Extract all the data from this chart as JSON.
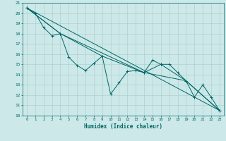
{
  "title": "",
  "xlabel": "Humidex (Indice chaleur)",
  "bg_color": "#cce8e8",
  "grid_color": "#b0d0d0",
  "line_color": "#006666",
  "xlim": [
    -0.5,
    23.5
  ],
  "ylim": [
    10,
    21
  ],
  "line1_x": [
    0,
    1,
    2,
    3,
    4,
    5,
    6,
    7,
    8,
    9,
    10,
    11,
    12,
    13,
    14,
    15,
    16,
    17,
    18,
    19,
    20,
    21,
    22,
    23
  ],
  "line1_y": [
    20.5,
    20.0,
    18.6,
    17.8,
    18.0,
    15.7,
    14.9,
    14.4,
    15.1,
    15.8,
    12.1,
    13.2,
    14.3,
    14.4,
    14.2,
    15.4,
    15.0,
    15.0,
    14.2,
    13.4,
    11.8,
    13.0,
    11.8,
    10.5
  ],
  "line2_x": [
    0,
    23
  ],
  "line2_y": [
    20.5,
    10.5
  ],
  "line3_x": [
    0,
    4,
    9,
    14,
    16,
    19,
    23
  ],
  "line3_y": [
    20.5,
    18.0,
    15.8,
    14.2,
    15.0,
    13.4,
    10.5
  ],
  "line4_x": [
    0,
    4,
    14,
    19,
    23
  ],
  "line4_y": [
    20.5,
    18.0,
    14.2,
    13.4,
    10.5
  ],
  "yticks": [
    10,
    11,
    12,
    13,
    14,
    15,
    16,
    17,
    18,
    19,
    20,
    21
  ],
  "xticks": [
    0,
    1,
    2,
    3,
    4,
    5,
    6,
    7,
    8,
    9,
    10,
    11,
    12,
    13,
    14,
    15,
    16,
    17,
    18,
    19,
    20,
    21,
    22,
    23
  ]
}
